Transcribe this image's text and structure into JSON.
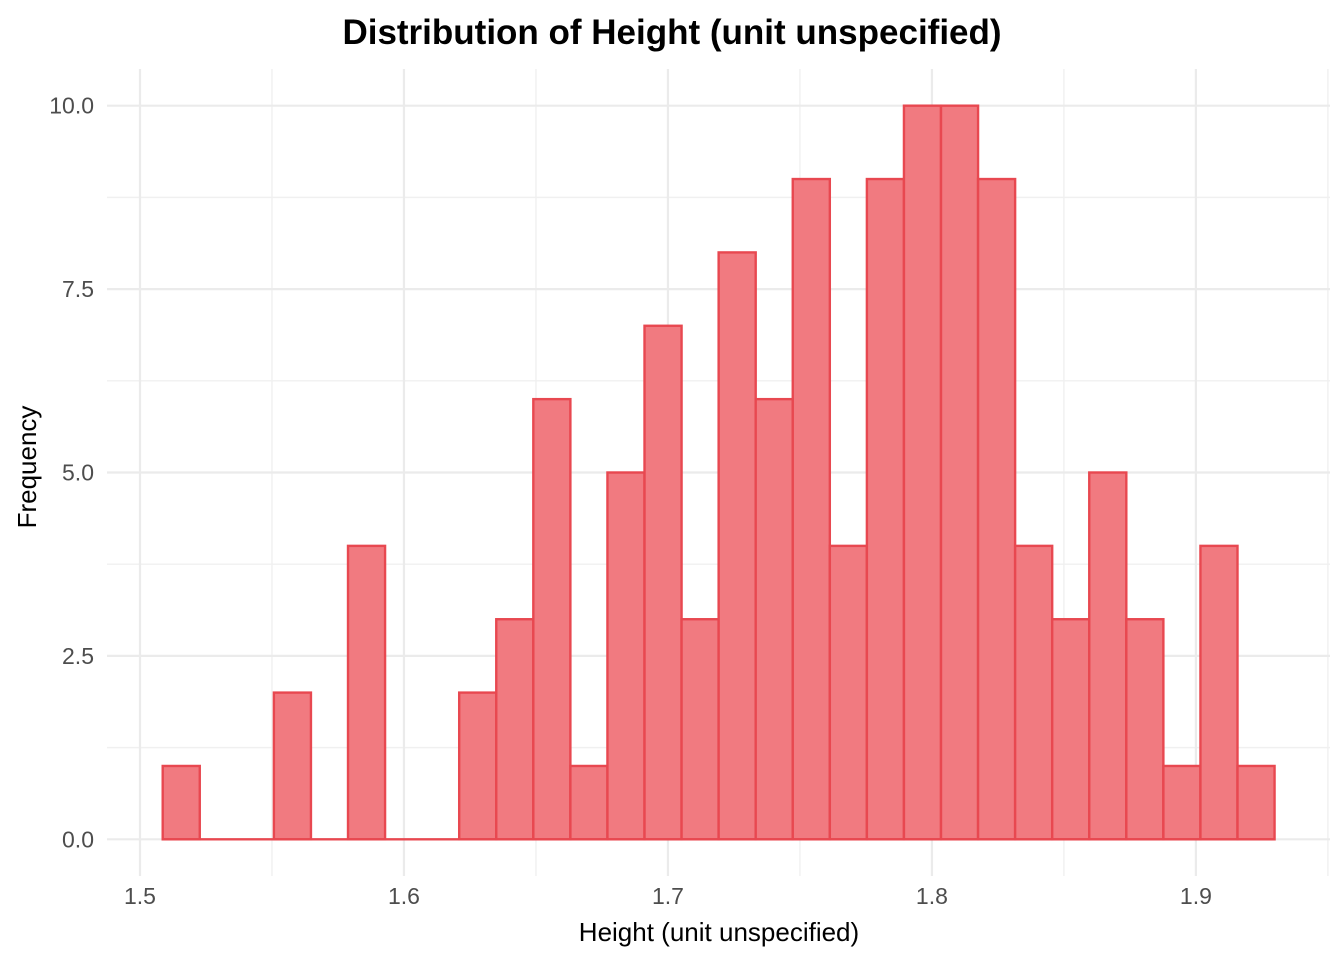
{
  "chart_data": {
    "type": "bar",
    "subtype": "histogram",
    "title": "Distribution of Height (unit unspecified)",
    "xlabel": "Height (unit unspecified)",
    "ylabel": "Frequency",
    "bin_start": 1.5086,
    "bin_width": 0.01404,
    "counts": [
      1,
      0,
      0,
      2,
      0,
      4,
      0,
      0,
      2,
      3,
      6,
      1,
      5,
      7,
      3,
      8,
      6,
      9,
      4,
      9,
      10,
      10,
      9,
      4,
      3,
      5,
      3,
      1,
      4,
      1
    ],
    "total_observations": 120,
    "x_ticks": [
      {
        "value": 1.5,
        "label": "1.5"
      },
      {
        "value": 1.6,
        "label": "1.6"
      },
      {
        "value": 1.7,
        "label": "1.7"
      },
      {
        "value": 1.8,
        "label": "1.8"
      },
      {
        "value": 1.9,
        "label": "1.9"
      }
    ],
    "y_ticks": [
      {
        "value": 0,
        "label": "0.0"
      },
      {
        "value": 2.5,
        "label": "2.5"
      },
      {
        "value": 5,
        "label": "5.0"
      },
      {
        "value": 7.5,
        "label": "7.5"
      },
      {
        "value": 10,
        "label": "10.0"
      }
    ],
    "x_minor_gridlines": [
      1.55,
      1.65,
      1.75,
      1.85,
      1.95
    ],
    "y_minor_gridlines": [
      1.25,
      3.75,
      6.25,
      8.75
    ],
    "xlim": [
      1.4875,
      1.9508
    ],
    "ylim": [
      -0.5,
      10.5
    ],
    "grid": "on",
    "legend": "none",
    "colors": {
      "bar_fill": "#F17A80",
      "bar_stroke": "#E84850",
      "grid_major": "#EBEBEB",
      "grid_minor": "#F0F0F0",
      "tick_label": "#4D4D4D",
      "text": "#000000",
      "background": "#FFFFFF"
    }
  }
}
